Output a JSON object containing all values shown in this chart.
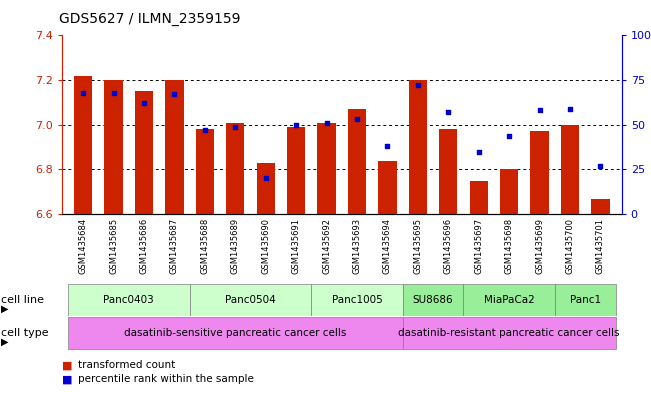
{
  "title": "GDS5627 / ILMN_2359159",
  "samples": [
    "GSM1435684",
    "GSM1435685",
    "GSM1435686",
    "GSM1435687",
    "GSM1435688",
    "GSM1435689",
    "GSM1435690",
    "GSM1435691",
    "GSM1435692",
    "GSM1435693",
    "GSM1435694",
    "GSM1435695",
    "GSM1435696",
    "GSM1435697",
    "GSM1435698",
    "GSM1435699",
    "GSM1435700",
    "GSM1435701"
  ],
  "transformed_counts": [
    7.22,
    7.2,
    7.15,
    7.2,
    6.98,
    7.01,
    6.83,
    6.99,
    7.01,
    7.07,
    6.84,
    7.2,
    6.98,
    6.75,
    6.8,
    6.97,
    7.0,
    6.67
  ],
  "percentile_ranks": [
    68,
    68,
    62,
    67,
    47,
    49,
    20,
    50,
    51,
    53,
    38,
    72,
    57,
    35,
    44,
    58,
    59,
    27
  ],
  "ylim_left": [
    6.6,
    7.4
  ],
  "ylim_right": [
    0,
    100
  ],
  "yticks_left": [
    6.6,
    6.8,
    7.0,
    7.2,
    7.4
  ],
  "yticks_right": [
    0,
    25,
    50,
    75,
    100
  ],
  "ytick_labels_right": [
    "0",
    "25",
    "50",
    "75",
    "100%"
  ],
  "bar_color": "#cc2200",
  "dot_color": "#0000cc",
  "bar_bottom": 6.6,
  "cell_lines": [
    {
      "label": "Panc0403",
      "start": 0,
      "end": 3,
      "color": "#ccffcc"
    },
    {
      "label": "Panc0504",
      "start": 4,
      "end": 7,
      "color": "#ccffcc"
    },
    {
      "label": "Panc1005",
      "start": 8,
      "end": 10,
      "color": "#ccffcc"
    },
    {
      "label": "SU8686",
      "start": 11,
      "end": 12,
      "color": "#99ee99"
    },
    {
      "label": "MiaPaCa2",
      "start": 13,
      "end": 15,
      "color": "#99ee99"
    },
    {
      "label": "Panc1",
      "start": 16,
      "end": 17,
      "color": "#99ee99"
    }
  ],
  "cell_types": [
    {
      "label": "dasatinib-sensitive pancreatic cancer cells",
      "start": 0,
      "end": 10,
      "color": "#ee88ee"
    },
    {
      "label": "dasatinib-resistant pancreatic cancer cells",
      "start": 11,
      "end": 17,
      "color": "#ee88ee"
    }
  ],
  "legend_items": [
    {
      "label": "transformed count",
      "color": "#cc2200"
    },
    {
      "label": "percentile rank within the sample",
      "color": "#0000cc"
    }
  ],
  "axis_label_color_left": "#cc2200",
  "axis_label_color_right": "#0000cc",
  "title_fontsize": 10
}
